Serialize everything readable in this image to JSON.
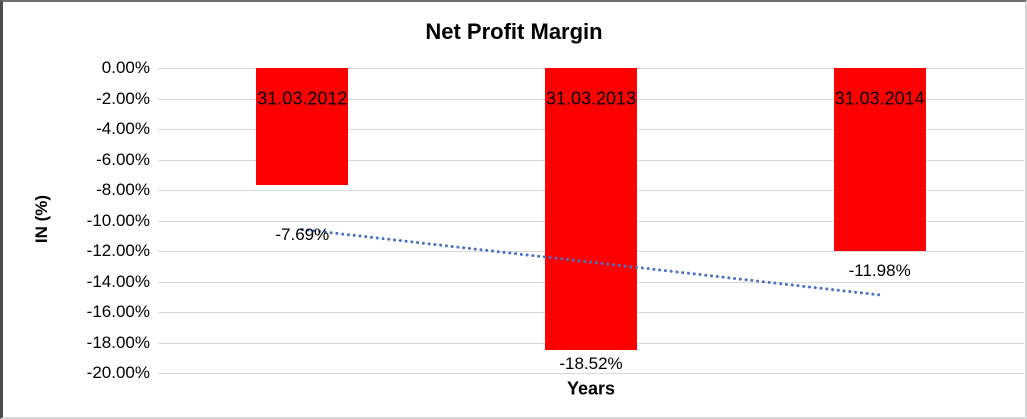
{
  "chart_data": {
    "type": "bar",
    "title": "Net Profit Margin",
    "xlabel": "Years",
    "ylabel": "IN (%)",
    "categories": [
      "31.03.2012",
      "31.03.2013",
      "31.03.2014"
    ],
    "values": [
      -7.69,
      -18.52,
      -11.98
    ],
    "data_labels": [
      "-7.69%",
      "-18.52%",
      "-11.98%"
    ],
    "data_label_values": [
      -10.95,
      -19.4,
      -13.3
    ],
    "category_label_value": -2.0,
    "bar_color": "#ff0000",
    "ylim": [
      0,
      -20
    ],
    "ytick_values": [
      0,
      -2,
      -4,
      -6,
      -8,
      -10,
      -12,
      -14,
      -16,
      -18,
      -20
    ],
    "yticks": [
      "0.00%",
      "-2.00%",
      "-4.00%",
      "-6.00%",
      "-8.00%",
      "-10.00%",
      "-12.00%",
      "-14.00%",
      "-16.00%",
      "-18.00%",
      "-20.00%"
    ],
    "grid": true,
    "gridline_color": "#d9d9d9",
    "legend": "none",
    "trendline": {
      "type": "linear",
      "style": "dotted",
      "color": "#4472c4",
      "start_value": -10.59,
      "end_value": -14.88
    }
  }
}
